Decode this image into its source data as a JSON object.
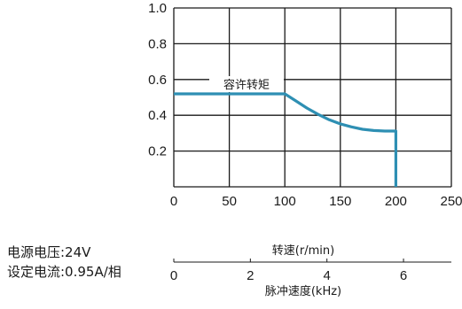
{
  "chart_data": {
    "type": "line",
    "xlabel": "转速(r/min)",
    "ylabel": "",
    "xlim": [
      0,
      250
    ],
    "ylim": [
      0,
      1.0
    ],
    "x_ticks": [
      0,
      50,
      100,
      150,
      200,
      250
    ],
    "y_ticks": [
      0.2,
      0.4,
      0.6,
      0.8,
      1.0
    ],
    "grid": true,
    "series": [
      {
        "name": "容许转矩",
        "color": "#2e8fb3",
        "x": [
          0,
          100,
          110,
          120,
          130,
          140,
          150,
          160,
          170,
          180,
          190,
          200,
          200
        ],
        "y": [
          0.52,
          0.52,
          0.48,
          0.44,
          0.405,
          0.375,
          0.352,
          0.335,
          0.322,
          0.315,
          0.312,
          0.312,
          0
        ]
      }
    ],
    "secondary_axis": {
      "label": "脉冲速度(kHz)",
      "ticks": [
        "0",
        "2",
        "4",
        "6"
      ],
      "tick_values": [
        0,
        2,
        4,
        6
      ],
      "range": [
        0,
        7.25
      ]
    },
    "notes": [
      "电源电压:24V",
      "设定电流:0.95A/相"
    ]
  }
}
